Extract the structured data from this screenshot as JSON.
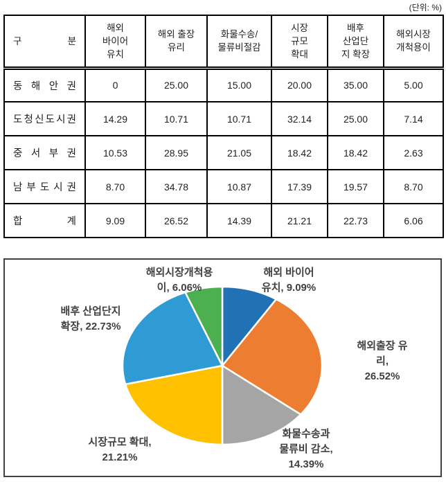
{
  "unit_note": "(단위: %)",
  "table": {
    "header": [
      "구 분",
      "해외\n바이어\n유치",
      "해외 출장\n유리",
      "화물수송/\n물류비절감",
      "시장\n규모\n확대",
      "배후\n산업단\n지 확장",
      "해외시장\n개척용이"
    ],
    "rows": [
      {
        "label": "동 해 안 권",
        "values": [
          "0",
          "25.00",
          "15.00",
          "20.00",
          "35.00",
          "5.00"
        ]
      },
      {
        "label": "도청신도시권",
        "values": [
          "14.29",
          "10.71",
          "10.71",
          "32.14",
          "25.00",
          "7.14"
        ]
      },
      {
        "label": "중 서 부 권",
        "values": [
          "10.53",
          "28.95",
          "21.05",
          "18.42",
          "18.42",
          "2.63"
        ]
      },
      {
        "label": "남 부 도 시 권",
        "values": [
          "8.70",
          "34.78",
          "10.87",
          "17.39",
          "19.57",
          "8.70"
        ]
      },
      {
        "label": "합 계",
        "values": [
          "9.09",
          "26.52",
          "14.39",
          "21.21",
          "22.73",
          "6.06"
        ]
      }
    ]
  },
  "chart_data": {
    "type": "pie",
    "title": "",
    "legend": "none",
    "label_position": "outside",
    "start_angle_deg": 0,
    "direction": "clockwise",
    "unit": "%",
    "slices": [
      {
        "name": "해외 바이어 유치",
        "value": 9.09,
        "color": "#2171B5",
        "label_display": "해외 바이어\n유치, 9.09%"
      },
      {
        "name": "해외출장 유리",
        "value": 26.52,
        "color": "#ED7D31",
        "label_display": "해외출장 유리,\n26.52%"
      },
      {
        "name": "화물수송과 물류비 감소",
        "value": 14.39,
        "color": "#A5A5A5",
        "label_display": "화물수송과\n물류비 감소,\n14.39%"
      },
      {
        "name": "시장규모 확대",
        "value": 21.21,
        "color": "#FFC000",
        "label_display": "시장규모 확대,\n21.21%"
      },
      {
        "name": "배후 산업단지 확장",
        "value": 22.73,
        "color": "#2E9BD5",
        "label_display": "배후 산업단지\n확장, 22.73%"
      },
      {
        "name": "해외시장개척용이",
        "value": 6.06,
        "color": "#4CAF50",
        "label_display": "해외시장개척용\n이, 6.06%"
      }
    ]
  }
}
